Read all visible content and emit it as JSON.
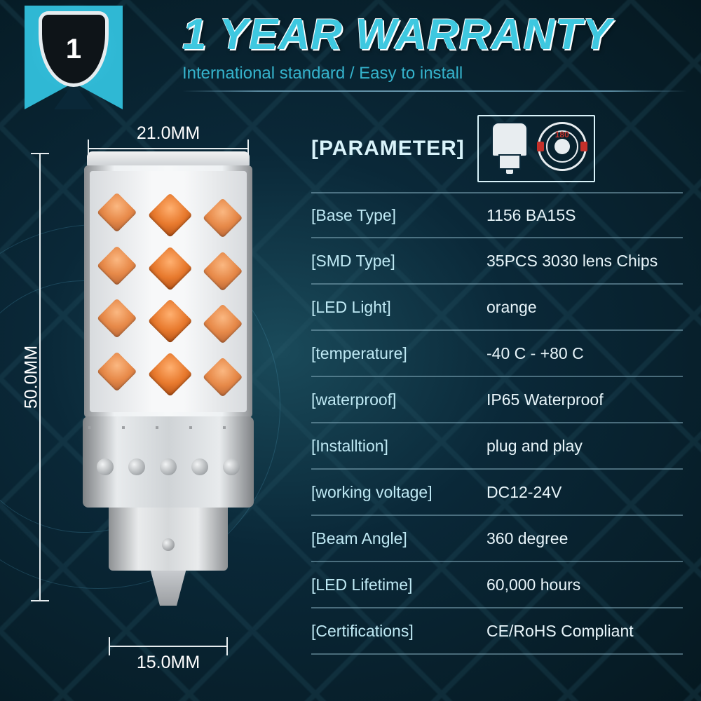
{
  "header": {
    "badge_number": "1",
    "title": "1 YEAR WARRANTY",
    "subtitle": "International standard / Easy to install"
  },
  "dimensions": {
    "width_top": "21.0MM",
    "height": "50.0MM",
    "width_bottom": "15.0MM"
  },
  "socket_diagram": {
    "angle_label": "180"
  },
  "parameter_section_title": "[PARAMETER]",
  "parameters": [
    {
      "label": "[Base Type]",
      "value": "1156 BA15S"
    },
    {
      "label": "[SMD Type]",
      "value": "35PCS 3030 lens  Chips"
    },
    {
      "label": "[LED Light]",
      "value": "orange"
    },
    {
      "label": "[temperature]",
      "value": "-40 C - +80 C"
    },
    {
      "label": "[waterproof]",
      "value": "IP65 Waterproof"
    },
    {
      "label": "[Installtion]",
      "value": "plug and play"
    },
    {
      "label": "[working  voltage]",
      "value": "DC12-24V"
    },
    {
      "label": "[Beam Angle]",
      "value": "360 degree"
    },
    {
      "label": "[LED Lifetime]",
      "value": "60,000 hours"
    },
    {
      "label": "[Certifications]",
      "value": "CE/RoHS Compliant"
    }
  ],
  "colors": {
    "accent": "#2fb8d4",
    "title_fill": "#3ec8e0",
    "led_chip": "#e87a2e",
    "bg_deep": "#051820",
    "row_divider": "rgba(130,170,185,0.55)",
    "text_key": "#bfe9f4",
    "text_val": "#e8f5fa",
    "pin_red": "#c5302a"
  }
}
